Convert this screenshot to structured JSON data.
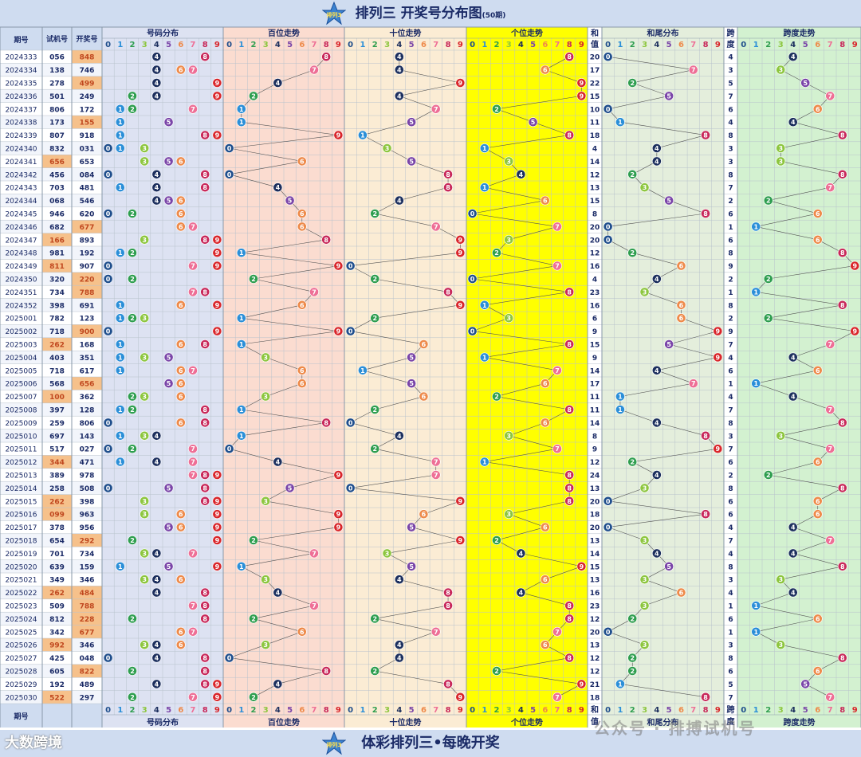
{
  "header": {
    "title": "排列三 开奖号分布图",
    "subtitle": "(50期)",
    "logo_text": "排列3"
  },
  "footer": {
    "title": "体彩排列三•每晚开奖"
  },
  "watermarks": {
    "left": "大数跨境",
    "right": "公众号 · 排搏试机号"
  },
  "columns": {
    "period": "期号",
    "test": "试机号",
    "draw": "开奖号",
    "dist": "号码分布",
    "hundreds": "百位走势",
    "tens": "十位走势",
    "units": "个位走势",
    "sum_top": "和",
    "sum_bottom": "值",
    "sum_tail": "和尾分布",
    "span_top": "跨",
    "span_bottom": "度",
    "span_trend": "跨度走势",
    "digits": [
      "0",
      "1",
      "2",
      "3",
      "4",
      "5",
      "6",
      "7",
      "8",
      "9"
    ]
  },
  "colors": {
    "ball": [
      "#1f4e8c",
      "#2b8fd8",
      "#2e9e4f",
      "#8dc63f",
      "#1c2f5e",
      "#7a45a8",
      "#ee8a4a",
      "#ee6f96",
      "#c8285a",
      "#d9252a"
    ],
    "section_bg": [
      "#dde2f2",
      "#fbdcd0",
      "#fbecd4",
      "#ffff00",
      "#e4eedc",
      "#d3f1d0"
    ],
    "header_bg": "#cfdcf0",
    "orange_cell": "#f6c18b",
    "orange_text": "#c0471e"
  },
  "chart_data": {
    "type": "table",
    "periods": [
      {
        "p": "2024333",
        "t": "056",
        "d": "848"
      },
      {
        "p": "2024334",
        "t": "138",
        "d": "746"
      },
      {
        "p": "2024335",
        "t": "278",
        "d": "499"
      },
      {
        "p": "2024336",
        "t": "501",
        "d": "249"
      },
      {
        "p": "2024337",
        "t": "806",
        "d": "172"
      },
      {
        "p": "2024338",
        "t": "173",
        "d": "155"
      },
      {
        "p": "2024339",
        "t": "807",
        "d": "918"
      },
      {
        "p": "2024340",
        "t": "832",
        "d": "031"
      },
      {
        "p": "2024341",
        "t": "656",
        "d": "653"
      },
      {
        "p": "2024342",
        "t": "456",
        "d": "084"
      },
      {
        "p": "2024343",
        "t": "703",
        "d": "481"
      },
      {
        "p": "2024344",
        "t": "068",
        "d": "546"
      },
      {
        "p": "2024345",
        "t": "946",
        "d": "620"
      },
      {
        "p": "2024346",
        "t": "682",
        "d": "677"
      },
      {
        "p": "2024347",
        "t": "166",
        "d": "893"
      },
      {
        "p": "2024348",
        "t": "981",
        "d": "192"
      },
      {
        "p": "2024349",
        "t": "811",
        "d": "907"
      },
      {
        "p": "2024350",
        "t": "320",
        "d": "220"
      },
      {
        "p": "2024351",
        "t": "734",
        "d": "788"
      },
      {
        "p": "2024352",
        "t": "398",
        "d": "691"
      },
      {
        "p": "2025001",
        "t": "782",
        "d": "123"
      },
      {
        "p": "2025002",
        "t": "718",
        "d": "900"
      },
      {
        "p": "2025003",
        "t": "262",
        "d": "168"
      },
      {
        "p": "2025004",
        "t": "403",
        "d": "351"
      },
      {
        "p": "2025005",
        "t": "718",
        "d": "617"
      },
      {
        "p": "2025006",
        "t": "568",
        "d": "656"
      },
      {
        "p": "2025007",
        "t": "100",
        "d": "362"
      },
      {
        "p": "2025008",
        "t": "397",
        "d": "128"
      },
      {
        "p": "2025009",
        "t": "259",
        "d": "806"
      },
      {
        "p": "2025010",
        "t": "697",
        "d": "143"
      },
      {
        "p": "2025011",
        "t": "517",
        "d": "027"
      },
      {
        "p": "2025012",
        "t": "344",
        "d": "471"
      },
      {
        "p": "2025013",
        "t": "389",
        "d": "978"
      },
      {
        "p": "2025014",
        "t": "258",
        "d": "508"
      },
      {
        "p": "2025015",
        "t": "262",
        "d": "398"
      },
      {
        "p": "2025016",
        "t": "099",
        "d": "963"
      },
      {
        "p": "2025017",
        "t": "378",
        "d": "956"
      },
      {
        "p": "2025018",
        "t": "654",
        "d": "292"
      },
      {
        "p": "2025019",
        "t": "701",
        "d": "734"
      },
      {
        "p": "2025020",
        "t": "639",
        "d": "159"
      },
      {
        "p": "2025021",
        "t": "349",
        "d": "346"
      },
      {
        "p": "2025022",
        "t": "262",
        "d": "484"
      },
      {
        "p": "2025023",
        "t": "509",
        "d": "788"
      },
      {
        "p": "2025024",
        "t": "812",
        "d": "228"
      },
      {
        "p": "2025025",
        "t": "342",
        "d": "677"
      },
      {
        "p": "2025026",
        "t": "992",
        "d": "346"
      },
      {
        "p": "2025027",
        "t": "425",
        "d": "048"
      },
      {
        "p": "2025028",
        "t": "605",
        "d": "822"
      },
      {
        "p": "2025029",
        "t": "192",
        "d": "489"
      },
      {
        "p": "2025030",
        "t": "522",
        "d": "297"
      }
    ]
  }
}
